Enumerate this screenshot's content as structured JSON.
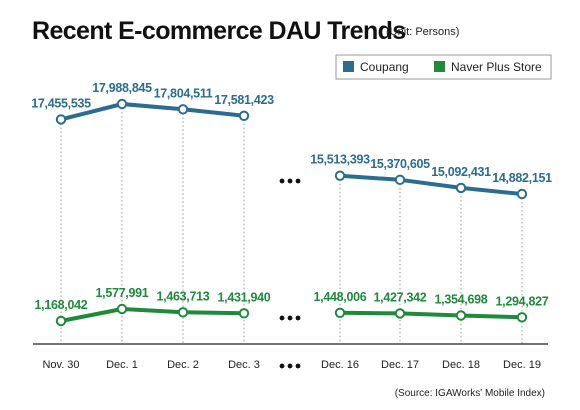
{
  "title": "Recent E-commerce DAU Trends",
  "unit_note": "(Unit: Persons)",
  "source_note": "(Source: IGAWorks' Mobile Index)",
  "colors": {
    "coupang": "#2a6d8f",
    "naver": "#1f8a3b",
    "text": "#111111",
    "grid": "#999999"
  },
  "chart_data": {
    "type": "line",
    "categories": [
      "Nov. 30",
      "Dec. 1",
      "Dec. 2",
      "Dec. 3",
      "Dec. 16",
      "Dec. 17",
      "Dec. 18",
      "Dec. 19"
    ],
    "gap_after_index": 3,
    "series": [
      {
        "name": "Coupang",
        "color": "#2a6d8f",
        "values": [
          17455535,
          17988845,
          17804511,
          17581423,
          15513393,
          15370605,
          15092431,
          14882151
        ],
        "labels": [
          "17,455,535",
          "17,988,845",
          "17,804,511",
          "17,581,423",
          "15,513,393",
          "15,370,605",
          "15,092,431",
          "14,882,151"
        ]
      },
      {
        "name": "Naver Plus Store",
        "color": "#1f8a3b",
        "values": [
          1168042,
          1577991,
          1463713,
          1431940,
          1448006,
          1427342,
          1354698,
          1294827
        ],
        "labels": [
          "1,168,042",
          "1,577,991",
          "1,463,713",
          "1,431,940",
          "1,448,006",
          "1,427,342",
          "1,354,698",
          "1,294,827"
        ]
      }
    ],
    "legend_position": "top-right",
    "axis_break": true
  }
}
